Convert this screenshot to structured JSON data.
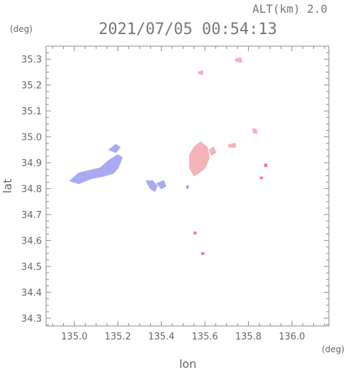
{
  "header": {
    "alt_label": "ALT(km)  2.0",
    "timestamp": "2021/07/05 00:54:13",
    "unit_y": "(deg)",
    "unit_x": "(deg)"
  },
  "chart_data": {
    "type": "scatter",
    "xlabel": "lon",
    "ylabel": "lat",
    "xlim": [
      134.87,
      136.17
    ],
    "ylim": [
      34.27,
      35.35
    ],
    "x_ticks": [
      135.0,
      135.2,
      135.4,
      135.6,
      135.8,
      136.0
    ],
    "x_tick_labels": [
      "135.0",
      "135.2",
      "135.4",
      "135.6",
      "135.8",
      "136.0"
    ],
    "y_ticks": [
      34.3,
      34.4,
      34.5,
      34.6,
      34.7,
      34.8,
      34.9,
      35.0,
      35.1,
      35.2,
      35.3
    ],
    "y_tick_labels": [
      "34.3",
      "34.4",
      "34.5",
      "34.6",
      "34.7",
      "34.8",
      "34.9",
      "35.0",
      "35.1",
      "35.2",
      "35.3"
    ],
    "colors": {
      "approaching": "#9999ee",
      "receding": "#f4a6ad"
    },
    "regions": [
      {
        "color": "#aaaaf2",
        "points": [
          [
            134.98,
            34.83
          ],
          [
            135.02,
            34.86
          ],
          [
            135.07,
            34.87
          ],
          [
            135.12,
            34.88
          ],
          [
            135.16,
            34.91
          ],
          [
            135.2,
            34.93
          ],
          [
            135.22,
            34.92
          ],
          [
            135.2,
            34.88
          ],
          [
            135.18,
            34.86
          ],
          [
            135.14,
            34.85
          ],
          [
            135.08,
            34.84
          ],
          [
            135.02,
            34.82
          ]
        ]
      },
      {
        "color": "#aaaaf2",
        "points": [
          [
            135.16,
            34.95
          ],
          [
            135.19,
            34.97
          ],
          [
            135.21,
            34.96
          ],
          [
            135.19,
            34.94
          ]
        ]
      },
      {
        "color": "#aaaaf2",
        "points": [
          [
            135.33,
            34.83
          ],
          [
            135.36,
            34.83
          ],
          [
            135.38,
            34.81
          ],
          [
            135.37,
            34.79
          ],
          [
            135.35,
            34.8
          ]
        ]
      },
      {
        "color": "#aaaaf2",
        "points": [
          [
            135.38,
            34.82
          ],
          [
            135.41,
            34.83
          ],
          [
            135.42,
            34.81
          ],
          [
            135.4,
            34.8
          ]
        ]
      },
      {
        "color": "#9999ee",
        "points": [
          [
            135.515,
            34.81
          ],
          [
            135.525,
            34.81
          ],
          [
            135.52,
            34.8
          ]
        ]
      },
      {
        "color": "#f4b4b9",
        "points": [
          [
            135.53,
            34.88
          ],
          [
            135.53,
            34.93
          ],
          [
            135.55,
            34.96
          ],
          [
            135.58,
            34.98
          ],
          [
            135.61,
            34.96
          ],
          [
            135.62,
            34.92
          ],
          [
            135.6,
            34.88
          ],
          [
            135.57,
            34.86
          ],
          [
            135.55,
            34.85
          ]
        ]
      },
      {
        "color": "#f4b4b9",
        "points": [
          [
            135.62,
            34.95
          ],
          [
            135.64,
            34.96
          ],
          [
            135.65,
            34.94
          ],
          [
            135.63,
            34.93
          ]
        ]
      },
      {
        "color": "#f4b4b9",
        "points": [
          [
            135.71,
            34.97
          ],
          [
            135.74,
            34.975
          ],
          [
            135.74,
            34.96
          ],
          [
            135.71,
            34.96
          ]
        ]
      },
      {
        "color": "#f4b4b9",
        "points": [
          [
            135.74,
            35.3
          ],
          [
            135.765,
            35.305
          ],
          [
            135.77,
            35.29
          ],
          [
            135.745,
            35.29
          ]
        ]
      },
      {
        "color": "#f4b4b9",
        "points": [
          [
            135.57,
            35.25
          ],
          [
            135.59,
            35.255
          ],
          [
            135.59,
            35.24
          ],
          [
            135.57,
            35.245
          ]
        ]
      },
      {
        "color": "#f4b4b9",
        "points": [
          [
            135.82,
            35.03
          ],
          [
            135.835,
            35.03
          ],
          [
            135.84,
            35.015
          ],
          [
            135.825,
            35.015
          ]
        ]
      },
      {
        "color": "#f08090",
        "points": [
          [
            135.855,
            34.845
          ],
          [
            135.865,
            34.845
          ],
          [
            135.865,
            34.838
          ],
          [
            135.855,
            34.838
          ]
        ]
      },
      {
        "color": "#f08090",
        "points": [
          [
            135.875,
            34.895
          ],
          [
            135.885,
            34.895
          ],
          [
            135.885,
            34.885
          ],
          [
            135.875,
            34.885
          ]
        ]
      },
      {
        "color": "#f08090",
        "points": [
          [
            135.55,
            34.632
          ],
          [
            135.56,
            34.632
          ],
          [
            135.56,
            34.625
          ],
          [
            135.55,
            34.625
          ]
        ]
      },
      {
        "color": "#f08090",
        "points": [
          [
            135.585,
            34.553
          ],
          [
            135.595,
            34.553
          ],
          [
            135.595,
            34.546
          ],
          [
            135.585,
            34.546
          ]
        ]
      }
    ]
  }
}
